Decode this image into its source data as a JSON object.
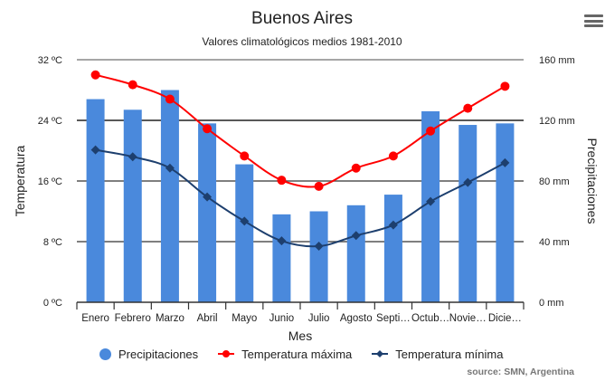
{
  "menu_icon": "hamburger-menu-icon",
  "chart_data": {
    "type": "bar+line",
    "title": "Buenos Aires",
    "subtitle": "Valores climatológicos medios 1981-2010",
    "xlabel": "Mes",
    "ylabel_left": "Temperatura",
    "ylabel_right": "Precipitaciones",
    "categories": [
      "Enero",
      "Febrero",
      "Marzo",
      "Abril",
      "Mayo",
      "Junio",
      "Julio",
      "Agosto",
      "Septi…",
      "Octub…",
      "Novie…",
      "Dicie…"
    ],
    "y_left": {
      "range": [
        0,
        32
      ],
      "ticks": [
        0,
        8,
        16,
        24,
        32
      ],
      "tick_labels": [
        "0 ºC",
        "8 ºC",
        "16 ºC",
        "24 ºC",
        "32 ºC"
      ]
    },
    "y_right": {
      "range": [
        0,
        160
      ],
      "ticks": [
        0,
        40,
        80,
        120,
        160
      ],
      "tick_labels": [
        "0 mm",
        "40 mm",
        "80 mm",
        "120 mm",
        "160 mm"
      ]
    },
    "grid": true,
    "legend_position": "bottom",
    "series": [
      {
        "name": "Precipitaciones",
        "type": "bar",
        "axis": "right",
        "color": "#4a89dc",
        "values": [
          134,
          127,
          140,
          118,
          91,
          58,
          60,
          64,
          71,
          126,
          117,
          118
        ]
      },
      {
        "name": "Temperatura máxima",
        "type": "line",
        "axis": "left",
        "color": "#ff0000",
        "marker": "circle",
        "values": [
          30.0,
          28.7,
          26.8,
          22.9,
          19.3,
          16.1,
          15.3,
          17.7,
          19.3,
          22.6,
          25.6,
          28.5
        ]
      },
      {
        "name": "Temperatura mínima",
        "type": "line",
        "axis": "left",
        "color": "#1d3f6e",
        "marker": "diamond",
        "values": [
          20.1,
          19.2,
          17.7,
          13.9,
          10.7,
          8.1,
          7.4,
          8.8,
          10.2,
          13.3,
          15.8,
          18.4
        ]
      }
    ],
    "source": "source:  SMN, Argentina"
  }
}
